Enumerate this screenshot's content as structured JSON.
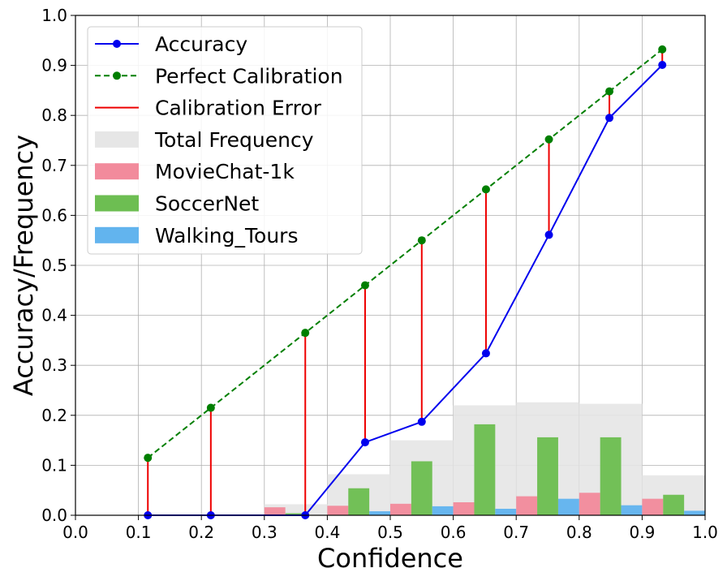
{
  "chart_data": {
    "type": "bar",
    "xlabel": "Confidence",
    "ylabel": "Accuracy/Frequency",
    "xlim": [
      0.0,
      1.0
    ],
    "ylim": [
      0.0,
      1.0
    ],
    "xticks": [
      "0.0",
      "0.1",
      "0.2",
      "0.3",
      "0.4",
      "0.5",
      "0.6",
      "0.7",
      "0.8",
      "0.9",
      "1.0"
    ],
    "yticks": [
      "0.0",
      "0.1",
      "0.2",
      "0.3",
      "0.4",
      "0.5",
      "0.6",
      "0.7",
      "0.8",
      "0.9",
      "1.0"
    ],
    "grid": true,
    "legend_position": "top-left",
    "bins": [
      [
        0.0,
        0.1
      ],
      [
        0.1,
        0.2
      ],
      [
        0.2,
        0.3
      ],
      [
        0.3,
        0.4
      ],
      [
        0.4,
        0.5
      ],
      [
        0.5,
        0.6
      ],
      [
        0.6,
        0.7
      ],
      [
        0.7,
        0.8
      ],
      [
        0.8,
        0.9
      ],
      [
        0.9,
        1.0
      ]
    ],
    "total_frequency": {
      "name": "Total Frequency",
      "color": "#e6e6e6",
      "values": [
        0.0,
        0.0,
        0.0,
        0.022,
        0.082,
        0.15,
        0.22,
        0.226,
        0.223,
        0.08
      ]
    },
    "series": [
      {
        "name": "MovieChat-1k",
        "color": "#f28b9c",
        "values": [
          0.0,
          0.0,
          0.0,
          0.016,
          0.019,
          0.023,
          0.026,
          0.038,
          0.045,
          0.033
        ]
      },
      {
        "name": "SoccerNet",
        "color": "#6dbe52",
        "values": [
          0.0,
          0.0,
          0.0,
          0.004,
          0.054,
          0.108,
          0.182,
          0.156,
          0.156,
          0.041
        ]
      },
      {
        "name": "Walking_Tours",
        "color": "#62b4ee",
        "values": [
          0.0,
          0.0,
          0.0,
          0.0,
          0.008,
          0.018,
          0.013,
          0.033,
          0.02,
          0.009
        ]
      }
    ],
    "accuracy": {
      "name": "Accuracy",
      "color": "#0000ee",
      "x": [
        0.115,
        0.215,
        0.365,
        0.46,
        0.55,
        0.652,
        0.752,
        0.848,
        0.932
      ],
      "y": [
        0.0,
        0.0,
        0.0,
        0.146,
        0.187,
        0.324,
        0.561,
        0.795,
        0.901
      ]
    },
    "perfect_calibration": {
      "name": "Perfect Calibration",
      "color": "#007f00",
      "x": [
        0.115,
        0.215,
        0.365,
        0.46,
        0.55,
        0.652,
        0.752,
        0.848,
        0.932
      ],
      "y": [
        0.115,
        0.215,
        0.365,
        0.46,
        0.55,
        0.652,
        0.752,
        0.848,
        0.932
      ]
    },
    "calibration_error": {
      "name": "Calibration Error",
      "color": "#ee0000"
    },
    "legend": [
      "Accuracy",
      "Perfect Calibration",
      "Calibration Error",
      "Total Frequency",
      "MovieChat-1k",
      "SoccerNet",
      "Walking_Tours"
    ]
  }
}
